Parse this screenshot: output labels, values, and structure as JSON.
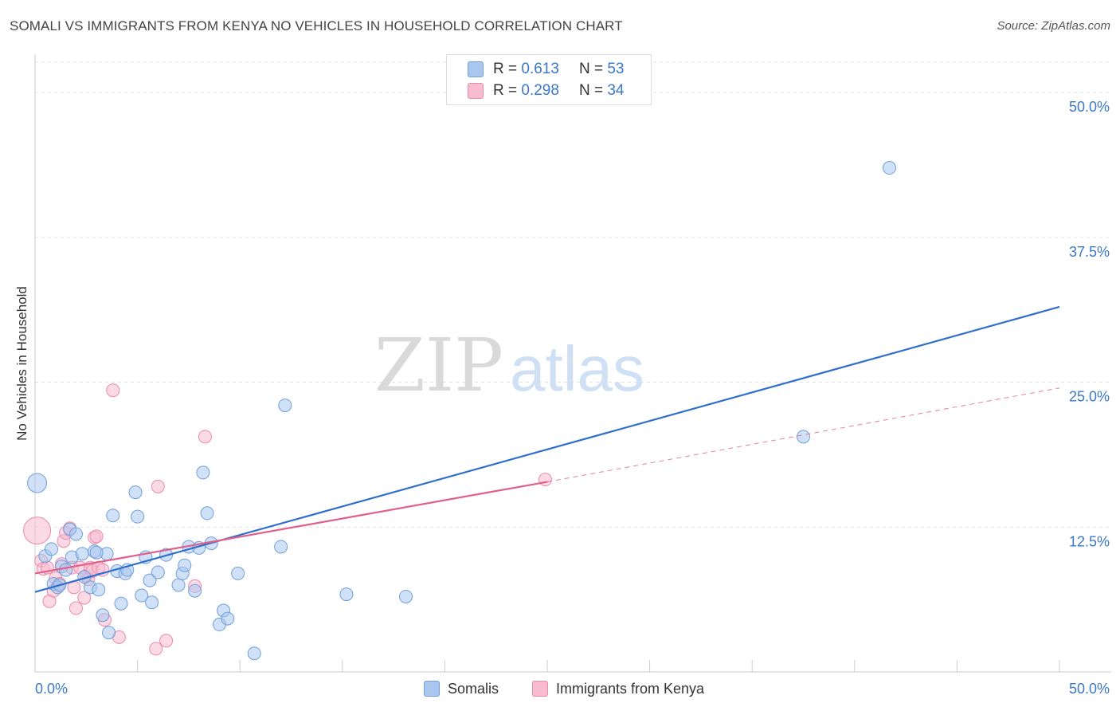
{
  "title": "SOMALI VS IMMIGRANTS FROM KENYA NO VEHICLES IN HOUSEHOLD CORRELATION CHART",
  "source": "Source: ZipAtlas.com",
  "watermark": {
    "zip": "ZIP",
    "atlas": "atlas"
  },
  "legend": {
    "r_label": "R =",
    "n_label": "N =",
    "rows": [
      {
        "name": "Somalis",
        "r": "0.613",
        "n": "53"
      },
      {
        "name": "Immigrants from Kenya",
        "r": "0.298",
        "n": "34"
      }
    ]
  },
  "colors": {
    "somali_fill": "#a9c6ee",
    "somali_stroke": "#6f9fd9",
    "somali_line": "#2f6fcb",
    "kenya_fill": "#f7bcd0",
    "kenya_stroke": "#ea8aab",
    "kenya_line": "#e0608a",
    "tick_label": "#3a78c9",
    "grid": "#e2e2e2"
  },
  "chart_data": {
    "type": "scatter",
    "title": "SOMALI VS IMMIGRANTS FROM KENYA NO VEHICLES IN HOUSEHOLD CORRELATION CHART",
    "xlabel": "",
    "ylabel": "No Vehicles in Household",
    "xlim": [
      0,
      50
    ],
    "ylim": [
      0,
      50
    ],
    "x_tick_labels": [
      "0.0%",
      "50.0%"
    ],
    "y_ticks": [
      12.5,
      25.0,
      37.5,
      50.0
    ],
    "y_tick_labels": [
      "12.5%",
      "25.0%",
      "37.5%",
      "50.0%"
    ],
    "grid": true,
    "legend_placement": "top-center",
    "series": [
      {
        "name": "Somalis",
        "trend": {
          "x": [
            0,
            50
          ],
          "y": [
            6.9,
            31.5
          ]
        },
        "points": [
          {
            "x": 0.1,
            "y": 16.3,
            "big": true
          },
          {
            "x": 0.5,
            "y": 10.0
          },
          {
            "x": 0.8,
            "y": 10.6
          },
          {
            "x": 0.9,
            "y": 7.6
          },
          {
            "x": 1.1,
            "y": 7.3
          },
          {
            "x": 1.3,
            "y": 9.1
          },
          {
            "x": 1.5,
            "y": 8.8
          },
          {
            "x": 1.7,
            "y": 12.3
          },
          {
            "x": 1.8,
            "y": 9.9
          },
          {
            "x": 2.0,
            "y": 11.9
          },
          {
            "x": 2.3,
            "y": 10.2
          },
          {
            "x": 2.4,
            "y": 8.2
          },
          {
            "x": 2.7,
            "y": 7.3
          },
          {
            "x": 2.9,
            "y": 10.4
          },
          {
            "x": 3.1,
            "y": 7.1
          },
          {
            "x": 3.3,
            "y": 4.9
          },
          {
            "x": 3.5,
            "y": 10.2
          },
          {
            "x": 3.6,
            "y": 3.4
          },
          {
            "x": 3.8,
            "y": 13.5
          },
          {
            "x": 4.0,
            "y": 8.7
          },
          {
            "x": 4.2,
            "y": 5.9
          },
          {
            "x": 4.4,
            "y": 8.5
          },
          {
            "x": 4.5,
            "y": 8.8
          },
          {
            "x": 4.9,
            "y": 15.5
          },
          {
            "x": 5.0,
            "y": 13.4
          },
          {
            "x": 5.2,
            "y": 6.6
          },
          {
            "x": 5.4,
            "y": 9.9
          },
          {
            "x": 5.6,
            "y": 7.9
          },
          {
            "x": 5.7,
            "y": 6.0
          },
          {
            "x": 6.0,
            "y": 8.6
          },
          {
            "x": 6.4,
            "y": 10.1
          },
          {
            "x": 7.0,
            "y": 7.5
          },
          {
            "x": 7.2,
            "y": 8.5
          },
          {
            "x": 7.3,
            "y": 9.2
          },
          {
            "x": 7.5,
            "y": 10.8
          },
          {
            "x": 7.8,
            "y": 7.0
          },
          {
            "x": 8.0,
            "y": 10.7
          },
          {
            "x": 8.2,
            "y": 17.2
          },
          {
            "x": 8.4,
            "y": 13.7
          },
          {
            "x": 8.6,
            "y": 11.1
          },
          {
            "x": 9.0,
            "y": 4.1
          },
          {
            "x": 9.2,
            "y": 5.3
          },
          {
            "x": 9.4,
            "y": 4.6
          },
          {
            "x": 9.9,
            "y": 8.5
          },
          {
            "x": 10.7,
            "y": 1.6
          },
          {
            "x": 12.0,
            "y": 10.8
          },
          {
            "x": 12.2,
            "y": 23.0
          },
          {
            "x": 15.2,
            "y": 6.7
          },
          {
            "x": 18.1,
            "y": 6.5
          },
          {
            "x": 41.7,
            "y": 43.5
          },
          {
            "x": 37.5,
            "y": 20.3
          },
          {
            "x": 3.0,
            "y": 10.3
          },
          {
            "x": 1.2,
            "y": 7.5
          }
        ]
      },
      {
        "name": "Immigrants from Kenya",
        "trend": {
          "x": [
            0,
            25
          ],
          "y": [
            8.5,
            16.4
          ]
        },
        "trend_dashed": {
          "x": [
            25,
            50
          ],
          "y": [
            16.4,
            24.5
          ]
        },
        "points": [
          {
            "x": 0.1,
            "y": 12.2,
            "big": true
          },
          {
            "x": 0.3,
            "y": 9.6
          },
          {
            "x": 0.4,
            "y": 8.9
          },
          {
            "x": 0.6,
            "y": 9.0
          },
          {
            "x": 0.7,
            "y": 6.1
          },
          {
            "x": 0.9,
            "y": 7.0
          },
          {
            "x": 1.0,
            "y": 8.1
          },
          {
            "x": 1.2,
            "y": 7.6
          },
          {
            "x": 1.3,
            "y": 9.3
          },
          {
            "x": 1.4,
            "y": 11.3
          },
          {
            "x": 1.5,
            "y": 12.0
          },
          {
            "x": 1.7,
            "y": 12.4
          },
          {
            "x": 1.8,
            "y": 9.0
          },
          {
            "x": 1.9,
            "y": 7.3
          },
          {
            "x": 2.0,
            "y": 5.5
          },
          {
            "x": 2.2,
            "y": 9.0
          },
          {
            "x": 2.4,
            "y": 6.4
          },
          {
            "x": 2.5,
            "y": 8.3
          },
          {
            "x": 2.6,
            "y": 8.0
          },
          {
            "x": 2.7,
            "y": 9.0
          },
          {
            "x": 2.8,
            "y": 8.7
          },
          {
            "x": 2.9,
            "y": 11.6
          },
          {
            "x": 3.0,
            "y": 11.7
          },
          {
            "x": 3.1,
            "y": 9.0
          },
          {
            "x": 3.3,
            "y": 8.8
          },
          {
            "x": 3.4,
            "y": 4.5
          },
          {
            "x": 3.8,
            "y": 24.3
          },
          {
            "x": 4.1,
            "y": 3.0
          },
          {
            "x": 5.9,
            "y": 2.0
          },
          {
            "x": 6.0,
            "y": 16.0
          },
          {
            "x": 6.4,
            "y": 2.7
          },
          {
            "x": 7.8,
            "y": 7.4
          },
          {
            "x": 8.3,
            "y": 20.3
          },
          {
            "x": 24.9,
            "y": 16.6
          }
        ]
      }
    ]
  }
}
